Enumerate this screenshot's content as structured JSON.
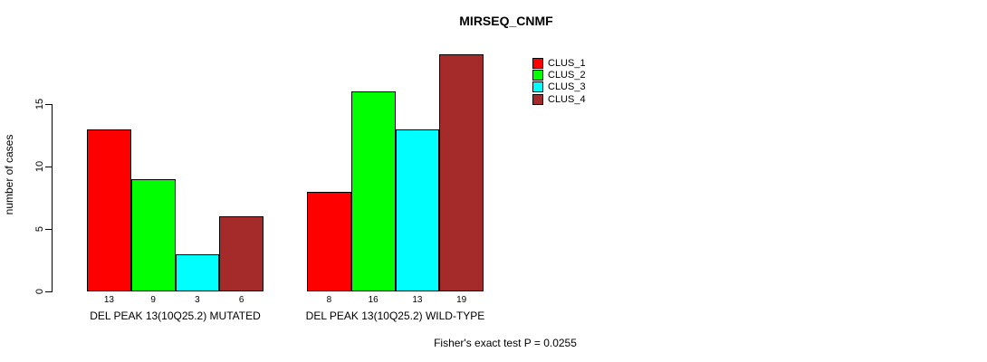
{
  "title": "MIRSEQ_CNMF",
  "ylabel": "number of cases",
  "footer": "Fisher's exact test P = 0.0255",
  "legend": {
    "items": [
      {
        "label": "CLUS_1",
        "color": "#FF0000"
      },
      {
        "label": "CLUS_2",
        "color": "#00FF00"
      },
      {
        "label": "CLUS_3",
        "color": "#00FFFF"
      },
      {
        "label": "CLUS_4",
        "color": "#A52A2A"
      }
    ]
  },
  "chart_data": {
    "type": "bar",
    "title": "MIRSEQ_CNMF",
    "xlabel": "",
    "ylabel": "number of cases",
    "categories": [
      "DEL PEAK 13(10Q25.2) MUTATED",
      "DEL PEAK 13(10Q25.2) WILD-TYPE"
    ],
    "series": [
      {
        "name": "CLUS_1",
        "color": "#FF0000",
        "values": [
          13,
          8
        ]
      },
      {
        "name": "CLUS_2",
        "color": "#00FF00",
        "values": [
          9,
          16
        ]
      },
      {
        "name": "CLUS_3",
        "color": "#00FFFF",
        "values": [
          3,
          13
        ]
      },
      {
        "name": "CLUS_4",
        "color": "#A52A2A",
        "values": [
          6,
          19
        ]
      }
    ],
    "bar_value_labels": [
      [
        13,
        9,
        3,
        6
      ],
      [
        8,
        16,
        13,
        19
      ]
    ],
    "yticks": [
      0,
      5,
      10,
      15
    ],
    "ylim": [
      0,
      19
    ],
    "grid": false,
    "legend_position": "top-right",
    "annotation": "Fisher's exact test P = 0.0255"
  }
}
